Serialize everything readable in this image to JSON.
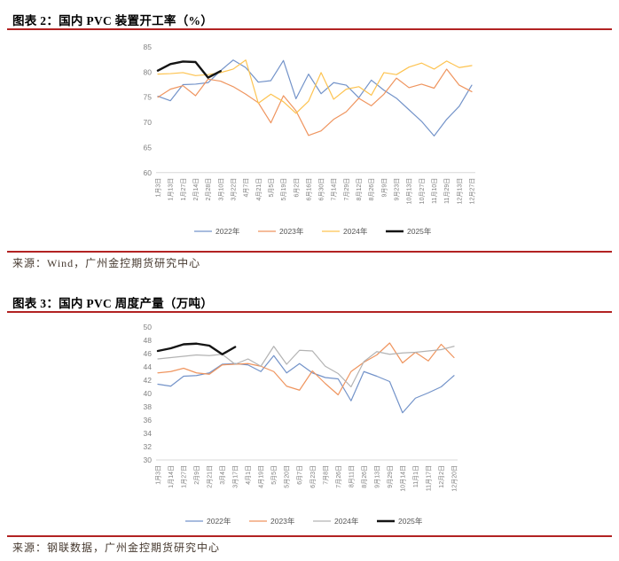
{
  "page": {
    "background": "#ffffff",
    "rule_color": "#b22222"
  },
  "figure2": {
    "title": "图表 2：国内 PVC 装置开工率（%）",
    "source": "来源：Wind，广州金控期货研究中心"
  },
  "figure3": {
    "title": "图表 3：国内 PVC 周度产量（万吨）",
    "source": "来源：钢联数据，广州金控期货研究中心"
  },
  "chart_data": [
    {
      "type": "line",
      "title": "国内PVC装置开工率（%）",
      "xlabel": "",
      "ylabel": "",
      "ylim": [
        60,
        85
      ],
      "yticks": [
        60,
        65,
        70,
        75,
        80,
        85
      ],
      "grid": false,
      "legend_position": "bottom",
      "categories": [
        "1月3日",
        "1月13日",
        "1月27日",
        "2月14日",
        "2月28日",
        "3月10日",
        "3月22日",
        "4月7日",
        "4月21日",
        "5月5日",
        "5月19日",
        "6月2日",
        "6月16日",
        "6月30日",
        "7月14日",
        "7月29日",
        "8月12日",
        "8月26日",
        "9月9日",
        "9月23日",
        "10月13日",
        "10月27日",
        "11月10日",
        "11月29日",
        "12月13日",
        "12月27日"
      ],
      "series": [
        {
          "name": "2022年",
          "color": "#7393c9",
          "width": 1.2,
          "values": [
            75.2,
            74.3,
            77.5,
            77.6,
            77.9,
            80.3,
            82.4,
            80.9,
            78.0,
            78.3,
            82.3,
            74.7,
            79.6,
            75.7,
            77.9,
            77.4,
            74.9,
            78.4,
            76.4,
            74.8,
            72.5,
            70.2,
            67.3,
            70.6,
            73.2,
            77.4
          ]
        },
        {
          "name": "2023年",
          "color": "#ef955f",
          "width": 1.2,
          "values": [
            75.0,
            76.6,
            77.3,
            75.3,
            78.6,
            78.2,
            77.1,
            75.6,
            73.9,
            69.9,
            75.3,
            72.3,
            67.4,
            68.3,
            70.6,
            72.1,
            74.8,
            73.3,
            75.6,
            78.8,
            76.9,
            77.6,
            76.8,
            80.6,
            77.4,
            76.1
          ]
        },
        {
          "name": "2024年",
          "color": "#fdc350",
          "width": 1.2,
          "values": [
            79.6,
            79.7,
            79.9,
            79.3,
            79.5,
            79.9,
            80.6,
            82.4,
            73.8,
            75.6,
            74.1,
            71.8,
            74.2,
            79.9,
            74.6,
            76.6,
            77.1,
            75.4,
            79.9,
            79.5,
            81.0,
            81.8,
            80.6,
            82.2,
            80.9,
            81.3
          ]
        },
        {
          "name": "2025年",
          "color": "#141414",
          "width": 2.4,
          "values": [
            80.3,
            81.6,
            82.1,
            82.0,
            78.9,
            80.2
          ]
        }
      ]
    },
    {
      "type": "line",
      "title": "国内PVC周度产量（万吨）",
      "xlabel": "",
      "ylabel": "",
      "ylim": [
        30,
        50
      ],
      "yticks": [
        30,
        32,
        34,
        36,
        38,
        40,
        42,
        44,
        46,
        48,
        50
      ],
      "grid": false,
      "legend_position": "bottom",
      "categories": [
        "1月3日",
        "1月14日",
        "1月27日",
        "2月9日",
        "2月21日",
        "3月4日",
        "3月17日",
        "4月1日",
        "4月19日",
        "5月5日",
        "5月20日",
        "6月7日",
        "6月23日",
        "7月8日",
        "7月26日",
        "8月11日",
        "8月26日",
        "9月13日",
        "9月29日",
        "10月14日",
        "11月1日",
        "11月17日",
        "12月2日",
        "12月20日"
      ],
      "series": [
        {
          "name": "2022年",
          "color": "#7393c9",
          "width": 1.2,
          "values": [
            41.4,
            41.1,
            42.6,
            42.7,
            43.1,
            44.4,
            44.5,
            44.3,
            43.3,
            45.7,
            43.1,
            44.5,
            43.1,
            42.4,
            42.2,
            38.9,
            43.3,
            42.6,
            41.8,
            37.1,
            39.3,
            40.1,
            41.0,
            42.7
          ]
        },
        {
          "name": "2023年",
          "color": "#ef955f",
          "width": 1.2,
          "values": [
            43.1,
            43.3,
            43.8,
            43.1,
            42.9,
            44.3,
            44.4,
            44.5,
            44.1,
            43.3,
            41.1,
            40.5,
            43.4,
            41.5,
            39.8,
            43.3,
            44.7,
            45.8,
            47.6,
            44.6,
            46.2,
            44.9,
            47.4,
            45.4
          ]
        },
        {
          "name": "2024年",
          "color": "#b3b3b3",
          "width": 1.2,
          "values": [
            45.2,
            45.4,
            45.6,
            45.8,
            45.7,
            45.9,
            44.4,
            45.2,
            44.1,
            47.1,
            44.4,
            46.5,
            46.4,
            44.1,
            43.0,
            41.0,
            44.8,
            46.3,
            45.9,
            46.1,
            46.2,
            46.4,
            46.6,
            47.1
          ]
        },
        {
          "name": "2025年",
          "color": "#141414",
          "width": 2.4,
          "values": [
            46.4,
            46.8,
            47.4,
            47.5,
            47.2,
            45.9,
            47.0
          ]
        }
      ]
    }
  ]
}
